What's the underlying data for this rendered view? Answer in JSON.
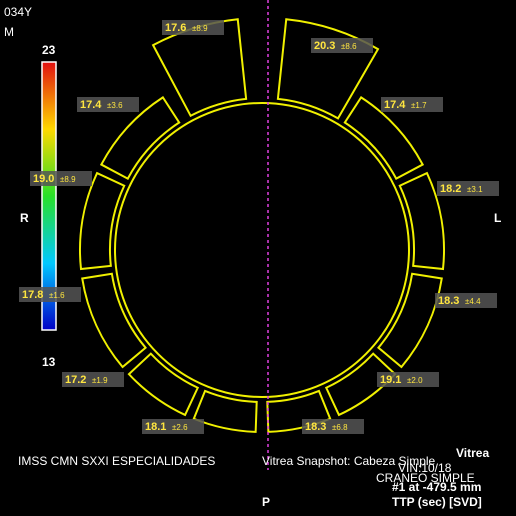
{
  "header": {
    "age": "034Y",
    "sex": "M"
  },
  "colorbar": {
    "max": "23",
    "min": "13"
  },
  "orientation": {
    "right": "R",
    "left": "L",
    "posterior": "P"
  },
  "regions": [
    {
      "mean": "17.6",
      "sd": "±8.9"
    },
    {
      "mean": "20.3",
      "sd": "±8.6"
    },
    {
      "mean": "17.4",
      "sd": "±3.6"
    },
    {
      "mean": "17.4",
      "sd": "±1.7"
    },
    {
      "mean": "19.0",
      "sd": "±8.9"
    },
    {
      "mean": "18.2",
      "sd": "±3.1"
    },
    {
      "mean": "17.8",
      "sd": "±1.6"
    },
    {
      "mean": "18.3",
      "sd": "±4.4"
    },
    {
      "mean": "17.2",
      "sd": "±1.9"
    },
    {
      "mean": "19.1",
      "sd": "±2.0"
    },
    {
      "mean": "18.1",
      "sd": "±2.6"
    },
    {
      "mean": "18.3",
      "sd": "±6.8"
    }
  ],
  "footer": {
    "institution": "IMSS CMN SXXI ESPECIALIDADES",
    "snapshot": "Vitrea Snapshot: Cabeza Simple",
    "brand": "Vitrea",
    "vin": "VIN:10/18",
    "series": "CRANEO SIMPLE",
    "position": "#1 at -479.5 mm",
    "map": "TTP (sec) [SVD]"
  }
}
